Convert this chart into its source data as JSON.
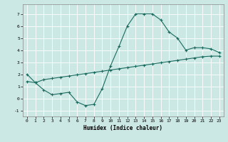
{
  "xlabel": "Humidex (Indice chaleur)",
  "ylabel": "",
  "bg_color": "#cce8e5",
  "line_color": "#1a6b5e",
  "grid_color": "#ffffff",
  "xlim": [
    -0.5,
    23.5
  ],
  "ylim": [
    -1.5,
    7.8
  ],
  "xticks": [
    0,
    1,
    2,
    3,
    4,
    5,
    6,
    7,
    8,
    9,
    10,
    11,
    12,
    13,
    14,
    15,
    16,
    17,
    18,
    19,
    20,
    21,
    22,
    23
  ],
  "yticks": [
    -1,
    0,
    1,
    2,
    3,
    4,
    5,
    6,
    7
  ],
  "line1_x": [
    0,
    1,
    2,
    3,
    4,
    5,
    6,
    7,
    8,
    9,
    10,
    11,
    12,
    13,
    14,
    15,
    16,
    17,
    18,
    19,
    20,
    21,
    22,
    23
  ],
  "line1_y": [
    2.0,
    1.3,
    0.7,
    0.3,
    0.4,
    0.5,
    -0.3,
    -0.6,
    -0.5,
    0.8,
    2.7,
    4.3,
    6.0,
    7.0,
    7.0,
    7.0,
    6.5,
    5.5,
    5.0,
    4.0,
    4.2,
    4.2,
    4.1,
    3.8
  ],
  "line2_x": [
    0,
    1,
    2,
    3,
    4,
    5,
    6,
    7,
    8,
    9,
    10,
    11,
    12,
    13,
    14,
    15,
    16,
    17,
    18,
    19,
    20,
    21,
    22,
    23
  ],
  "line2_y": [
    1.4,
    1.3,
    1.55,
    1.65,
    1.75,
    1.85,
    1.95,
    2.05,
    2.15,
    2.25,
    2.35,
    2.45,
    2.55,
    2.65,
    2.75,
    2.85,
    2.95,
    3.05,
    3.15,
    3.25,
    3.35,
    3.45,
    3.5,
    3.5
  ]
}
